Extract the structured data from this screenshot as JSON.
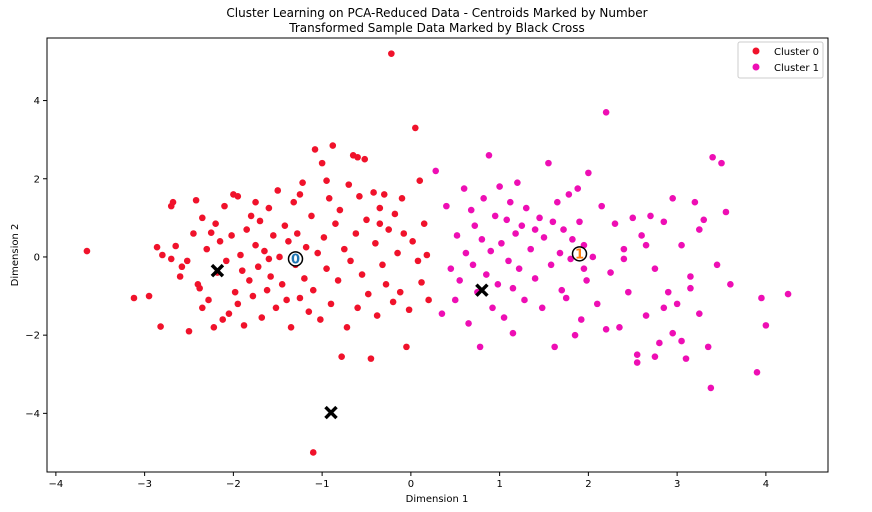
{
  "chart_data": {
    "type": "scatter",
    "title": "Cluster Learning on PCA-Reduced Data - Centroids Marked by Number",
    "subtitle": "Transformed Sample Data Marked by Black Cross",
    "xlabel": "Dimension 1",
    "ylabel": "Dimension 2",
    "xlim": [
      -4.1,
      4.7
    ],
    "ylim": [
      -5.5,
      5.6
    ],
    "xticks": [
      -4,
      -3,
      -2,
      -1,
      0,
      1,
      2,
      3,
      4
    ],
    "yticks": [
      -4,
      -2,
      0,
      2,
      4
    ],
    "grid": false,
    "legend_position": "top-right",
    "colors": {
      "cluster0": "#f0122b",
      "cluster1": "#ee0eb4",
      "centroid0": "#1f77b4",
      "centroid1": "#ff7f0e",
      "cross": "#000000"
    },
    "series": [
      {
        "name": "Cluster 0",
        "points": [
          [
            -3.65,
            0.15
          ],
          [
            -3.12,
            -1.05
          ],
          [
            -2.95,
            -1.0
          ],
          [
            -2.86,
            0.25
          ],
          [
            -2.82,
            -1.78
          ],
          [
            -2.8,
            0.05
          ],
          [
            -2.7,
            1.3
          ],
          [
            -2.68,
            1.4
          ],
          [
            -2.65,
            0.28
          ],
          [
            -2.6,
            -0.5
          ],
          [
            -2.58,
            -0.25
          ],
          [
            -2.52,
            -0.1
          ],
          [
            -2.5,
            -1.9
          ],
          [
            -2.45,
            0.6
          ],
          [
            -2.42,
            1.45
          ],
          [
            -2.4,
            -0.7
          ],
          [
            -2.38,
            -0.8
          ],
          [
            -2.35,
            -1.3
          ],
          [
            -2.3,
            0.2
          ],
          [
            -2.28,
            -1.1
          ],
          [
            -2.25,
            0.62
          ],
          [
            -2.22,
            -1.8
          ],
          [
            -2.2,
            0.85
          ],
          [
            -2.18,
            -0.4
          ],
          [
            -2.15,
            0.4
          ],
          [
            -2.12,
            -1.6
          ],
          [
            -2.1,
            1.3
          ],
          [
            -2.08,
            -0.1
          ],
          [
            -2.05,
            -1.45
          ],
          [
            -2.02,
            0.55
          ],
          [
            -2.0,
            1.6
          ],
          [
            -1.98,
            -0.9
          ],
          [
            -1.95,
            -1.2
          ],
          [
            -1.92,
            0.05
          ],
          [
            -1.9,
            -0.35
          ],
          [
            -1.88,
            -1.75
          ],
          [
            -1.85,
            0.7
          ],
          [
            -1.82,
            -0.6
          ],
          [
            -1.8,
            1.05
          ],
          [
            -1.78,
            -1.0
          ],
          [
            -1.75,
            0.3
          ],
          [
            -1.72,
            -0.25
          ],
          [
            -1.7,
            0.92
          ],
          [
            -1.68,
            -1.55
          ],
          [
            -1.65,
            0.15
          ],
          [
            -1.62,
            -0.85
          ],
          [
            -1.6,
            1.25
          ],
          [
            -1.58,
            -0.5
          ],
          [
            -1.55,
            0.55
          ],
          [
            -1.52,
            -1.3
          ],
          [
            -1.5,
            1.7
          ],
          [
            -1.48,
            0.0
          ],
          [
            -1.45,
            -0.7
          ],
          [
            -1.42,
            0.8
          ],
          [
            -1.4,
            -1.1
          ],
          [
            -1.38,
            0.4
          ],
          [
            -1.35,
            -1.8
          ],
          [
            -1.32,
            1.4
          ],
          [
            -1.3,
            -0.2
          ],
          [
            -1.28,
            0.6
          ],
          [
            -1.25,
            -1.05
          ],
          [
            -1.22,
            1.9
          ],
          [
            -1.2,
            -0.55
          ],
          [
            -1.18,
            0.25
          ],
          [
            -1.15,
            -1.4
          ],
          [
            -1.12,
            1.05
          ],
          [
            -1.1,
            -0.85
          ],
          [
            -1.08,
            2.75
          ],
          [
            -1.05,
            0.1
          ],
          [
            -1.02,
            -1.6
          ],
          [
            -1.0,
            2.4
          ],
          [
            -0.98,
            0.5
          ],
          [
            -0.95,
            -0.3
          ],
          [
            -0.92,
            1.5
          ],
          [
            -0.9,
            -1.2
          ],
          [
            -0.88,
            2.85
          ],
          [
            -0.85,
            0.85
          ],
          [
            -0.82,
            -0.6
          ],
          [
            -0.8,
            1.2
          ],
          [
            -0.78,
            -2.55
          ],
          [
            -0.75,
            0.2
          ],
          [
            -0.72,
            -1.8
          ],
          [
            -0.7,
            1.85
          ],
          [
            -0.68,
            -0.1
          ],
          [
            -0.65,
            2.6
          ],
          [
            -0.62,
            0.6
          ],
          [
            -0.6,
            -1.3
          ],
          [
            -0.58,
            1.55
          ],
          [
            -0.55,
            -0.45
          ],
          [
            -0.52,
            2.5
          ],
          [
            -0.5,
            0.95
          ],
          [
            -0.48,
            -0.95
          ],
          [
            -0.45,
            -2.6
          ],
          [
            -0.42,
            1.65
          ],
          [
            -0.4,
            0.35
          ],
          [
            -0.38,
            -1.5
          ],
          [
            -0.35,
            1.25
          ],
          [
            -0.32,
            -0.2
          ],
          [
            -0.3,
            1.6
          ],
          [
            -0.28,
            -0.7
          ],
          [
            -0.25,
            0.7
          ],
          [
            -0.22,
            5.2
          ],
          [
            -0.2,
            -1.15
          ],
          [
            -0.18,
            1.1
          ],
          [
            -0.15,
            0.1
          ],
          [
            -0.12,
            -0.9
          ],
          [
            -0.1,
            1.5
          ],
          [
            -0.08,
            0.6
          ],
          [
            -0.05,
            -2.3
          ],
          [
            -0.02,
            -1.35
          ],
          [
            0.02,
            0.4
          ],
          [
            0.05,
            3.3
          ],
          [
            0.08,
            -0.1
          ],
          [
            0.1,
            1.95
          ],
          [
            0.12,
            -0.65
          ],
          [
            0.15,
            0.85
          ],
          [
            0.18,
            0.05
          ],
          [
            0.2,
            -1.1
          ],
          [
            -1.1,
            -5.0
          ],
          [
            -2.7,
            -0.05
          ],
          [
            -2.35,
            1.0
          ],
          [
            -1.95,
            1.55
          ],
          [
            -1.6,
            -0.05
          ],
          [
            -1.25,
            1.6
          ],
          [
            -0.95,
            1.95
          ],
          [
            -0.6,
            2.55
          ],
          [
            -0.35,
            0.85
          ],
          [
            -1.75,
            1.4
          ]
        ]
      },
      {
        "name": "Cluster 1",
        "points": [
          [
            0.35,
            -1.45
          ],
          [
            0.4,
            1.3
          ],
          [
            0.45,
            -0.3
          ],
          [
            0.5,
            -1.1
          ],
          [
            0.52,
            0.55
          ],
          [
            0.55,
            -0.6
          ],
          [
            0.6,
            1.75
          ],
          [
            0.62,
            0.1
          ],
          [
            0.65,
            -1.7
          ],
          [
            0.68,
            1.2
          ],
          [
            0.7,
            -0.2
          ],
          [
            0.72,
            0.8
          ],
          [
            0.75,
            -0.9
          ],
          [
            0.78,
            -2.3
          ],
          [
            0.8,
            0.45
          ],
          [
            0.82,
            1.5
          ],
          [
            0.85,
            -0.45
          ],
          [
            0.88,
            2.6
          ],
          [
            0.9,
            0.15
          ],
          [
            0.92,
            -1.3
          ],
          [
            0.95,
            1.05
          ],
          [
            0.98,
            -0.7
          ],
          [
            1.0,
            1.8
          ],
          [
            1.02,
            0.35
          ],
          [
            1.05,
            -1.55
          ],
          [
            1.08,
            0.95
          ],
          [
            1.1,
            -0.1
          ],
          [
            1.12,
            1.4
          ],
          [
            1.15,
            -0.8
          ],
          [
            1.18,
            0.6
          ],
          [
            1.2,
            1.9
          ],
          [
            1.22,
            -0.3
          ],
          [
            1.25,
            0.8
          ],
          [
            1.28,
            -1.1
          ],
          [
            1.3,
            1.25
          ],
          [
            1.35,
            0.2
          ],
          [
            1.4,
            -0.55
          ],
          [
            1.45,
            1.0
          ],
          [
            1.48,
            -1.3
          ],
          [
            1.5,
            0.5
          ],
          [
            1.55,
            2.4
          ],
          [
            1.58,
            -0.2
          ],
          [
            1.6,
            0.9
          ],
          [
            1.62,
            -2.3
          ],
          [
            1.65,
            1.4
          ],
          [
            1.68,
            0.1
          ],
          [
            1.7,
            -0.85
          ],
          [
            1.72,
            0.7
          ],
          [
            1.75,
            -1.05
          ],
          [
            1.78,
            1.6
          ],
          [
            1.8,
            -0.05
          ],
          [
            1.82,
            0.45
          ],
          [
            1.85,
            -2.0
          ],
          [
            1.88,
            1.75
          ],
          [
            1.9,
            0.9
          ],
          [
            1.92,
            -1.6
          ],
          [
            1.95,
            0.3
          ],
          [
            1.98,
            -0.6
          ],
          [
            2.0,
            2.15
          ],
          [
            2.05,
            0.0
          ],
          [
            2.1,
            -1.2
          ],
          [
            2.15,
            1.3
          ],
          [
            2.2,
            3.7
          ],
          [
            2.25,
            -0.4
          ],
          [
            2.3,
            0.85
          ],
          [
            2.35,
            -1.8
          ],
          [
            2.4,
            0.2
          ],
          [
            2.45,
            -0.9
          ],
          [
            2.5,
            1.0
          ],
          [
            2.55,
            -2.5
          ],
          [
            2.6,
            0.55
          ],
          [
            2.65,
            -1.5
          ],
          [
            2.7,
            1.05
          ],
          [
            2.75,
            -0.3
          ],
          [
            2.8,
            -2.2
          ],
          [
            2.85,
            0.9
          ],
          [
            2.9,
            -0.9
          ],
          [
            2.95,
            1.5
          ],
          [
            3.0,
            -1.2
          ],
          [
            3.05,
            0.3
          ],
          [
            3.1,
            -2.6
          ],
          [
            3.15,
            -0.8
          ],
          [
            3.2,
            1.4
          ],
          [
            3.25,
            -1.45
          ],
          [
            3.3,
            0.95
          ],
          [
            3.35,
            -2.3
          ],
          [
            3.38,
            -3.35
          ],
          [
            3.4,
            2.55
          ],
          [
            3.45,
            -0.2
          ],
          [
            3.5,
            2.4
          ],
          [
            3.55,
            1.15
          ],
          [
            3.6,
            -0.7
          ],
          [
            3.9,
            -2.95
          ],
          [
            3.95,
            -1.05
          ],
          [
            4.0,
            -1.75
          ],
          [
            4.25,
            -0.95
          ],
          [
            2.55,
            -2.7
          ],
          [
            2.75,
            -2.55
          ],
          [
            2.95,
            -1.95
          ],
          [
            3.25,
            0.7
          ],
          [
            1.15,
            -1.95
          ],
          [
            0.28,
            2.2
          ],
          [
            2.4,
            -0.05
          ],
          [
            1.4,
            0.7
          ],
          [
            2.65,
            0.3
          ],
          [
            3.05,
            -2.15
          ],
          [
            2.2,
            -1.85
          ],
          [
            1.95,
            -0.3
          ],
          [
            2.85,
            -1.3
          ],
          [
            3.15,
            -0.5
          ]
        ]
      }
    ],
    "centroids": [
      {
        "label": "0",
        "x": -1.3,
        "y": -0.05
      },
      {
        "label": "1",
        "x": 1.9,
        "y": 0.08
      }
    ],
    "samples": [
      {
        "x": -2.18,
        "y": -0.35
      },
      {
        "x": -0.9,
        "y": -3.98
      },
      {
        "x": 0.8,
        "y": -0.85
      }
    ]
  }
}
